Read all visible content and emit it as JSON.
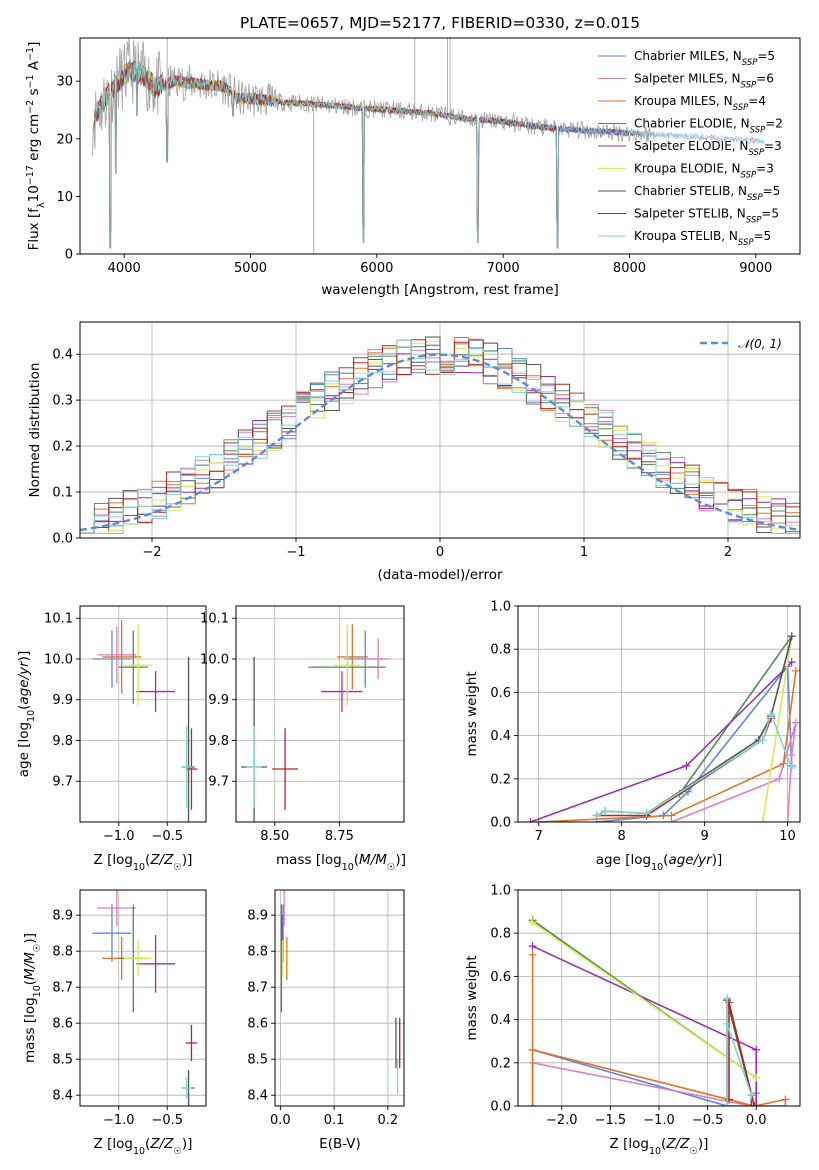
{
  "figure": {
    "title": "PLATE=0657, MJD=52177, FIBERID=0330, z=0.015"
  },
  "colors": {
    "chabrier_miles": "#5b8bd9",
    "salpeter_miles": "#e07fb8",
    "kroupa_miles": "#e0752a",
    "chabrier_elodie": "#4e8b55",
    "salpeter_elodie": "#9a2fb3",
    "kroupa_elodie": "#d6ea56",
    "chabrier_stelib": "#555555",
    "salpeter_stelib": "#b3281e",
    "kroupa_stelib": "#7fd4d8",
    "data": "#a8a8a8",
    "normal": "#5b8bd9"
  },
  "chart_data": [
    {
      "id": "spectrum",
      "type": "line",
      "xlabel": "wavelength [Angstrom, rest frame]",
      "ylabel": "Flux [fλ10⁻¹⁷ erg cm⁻² s⁻¹ A⁻¹]",
      "xlim": [
        3650,
        9350
      ],
      "ylim": [
        0,
        37.5
      ],
      "xticks": [
        4000,
        5000,
        6000,
        7000,
        8000,
        9000
      ],
      "yticks": [
        0,
        10,
        20,
        30
      ],
      "grid": false,
      "legend_position": "top-right",
      "continuum": {
        "wavelength": [
          3750,
          3850,
          3950,
          4050,
          4150,
          4250,
          4400,
          4600,
          4800,
          4900,
          5000,
          5200,
          5500,
          5800,
          6100,
          6400,
          6700,
          7000,
          7300,
          7600,
          8000,
          8400,
          8800,
          9080
        ],
        "flux": [
          23,
          27,
          30,
          32,
          31,
          29,
          30,
          29.5,
          29,
          27,
          27,
          26.5,
          26,
          25.5,
          25,
          24.5,
          23.5,
          23,
          22,
          21.5,
          21,
          20.5,
          20,
          19.5
        ]
      },
      "absorption_features": [
        {
          "wavelength": 3890,
          "depth_flux": 1
        },
        {
          "wavelength": 3934,
          "depth_flux": 14
        },
        {
          "wavelength": 4102,
          "depth_flux": 24
        },
        {
          "wavelength": 4340,
          "depth_flux": 16
        },
        {
          "wavelength": 4861,
          "depth_flux": 24
        },
        {
          "wavelength": 5892,
          "depth_flux": 2
        },
        {
          "wavelength": 6800,
          "depth_flux": 2
        },
        {
          "wavelength": 7430,
          "depth_flux": 1
        }
      ],
      "series": [
        {
          "name": "Chabrier MILES, N_SSP=5",
          "color_key": "chabrier_miles"
        },
        {
          "name": "Salpeter MILES, N_SSP=6",
          "color_key": "salpeter_miles"
        },
        {
          "name": "Kroupa MILES, N_SSP=4",
          "color_key": "kroupa_miles"
        },
        {
          "name": "Chabrier ELODIE, N_SSP=2",
          "color_key": "chabrier_elodie"
        },
        {
          "name": "Salpeter ELODIE, N_SSP=3",
          "color_key": "salpeter_elodie"
        },
        {
          "name": "Kroupa ELODIE, N_SSP=3",
          "color_key": "kroupa_elodie"
        },
        {
          "name": "Chabrier STELIB, N_SSP=5",
          "color_key": "chabrier_stelib"
        },
        {
          "name": "Salpeter STELIB, N_SSP=5",
          "color_key": "salpeter_stelib"
        },
        {
          "name": "Kroupa STELIB, N_SSP=5",
          "color_key": "kroupa_stelib"
        }
      ],
      "legend": [
        {
          "prefix": "Chabrier MILES, N",
          "sub": "SSP",
          "suffix": "=5",
          "color_key": "chabrier_miles"
        },
        {
          "prefix": "Salpeter MILES, N",
          "sub": "SSP",
          "suffix": "=6",
          "color_key": "salpeter_miles"
        },
        {
          "prefix": "Kroupa MILES, N",
          "sub": "SSP",
          "suffix": "=4",
          "color_key": "kroupa_miles"
        },
        {
          "prefix": "Chabrier ELODIE, N",
          "sub": "SSP",
          "suffix": "=2",
          "color_key": "chabrier_elodie"
        },
        {
          "prefix": "Salpeter ELODIE, N",
          "sub": "SSP",
          "suffix": "=3",
          "color_key": "salpeter_elodie"
        },
        {
          "prefix": "Kroupa ELODIE, N",
          "sub": "SSP",
          "suffix": "=3",
          "color_key": "kroupa_elodie"
        },
        {
          "prefix": "Chabrier STELIB, N",
          "sub": "SSP",
          "suffix": "=5",
          "color_key": "chabrier_stelib"
        },
        {
          "prefix": "Salpeter STELIB, N",
          "sub": "SSP",
          "suffix": "=5",
          "color_key": "salpeter_stelib"
        },
        {
          "prefix": "Kroupa STELIB, N",
          "sub": "SSP",
          "suffix": "=5",
          "color_key": "kroupa_stelib"
        }
      ]
    },
    {
      "id": "residuals",
      "type": "line",
      "xlabel": "(data-model)/error",
      "ylabel": "Normed distribution",
      "xlim": [
        -2.5,
        2.5
      ],
      "ylim": [
        0,
        0.47
      ],
      "xticks": [
        -2,
        -1,
        0,
        1,
        2
      ],
      "yticks": [
        0.0,
        0.1,
        0.2,
        0.3,
        0.4
      ],
      "grid": true,
      "legend_position": "top-right",
      "normal_curve": {
        "label": "𝒩(0, 1)",
        "mean": 0,
        "sigma": 1,
        "style": "dashed"
      },
      "histogram": {
        "bin_start": -2.5,
        "bin_width": 0.1,
        "bins": 50,
        "series_count": 9
      }
    },
    {
      "id": "age_vs_Z",
      "type": "scatter",
      "xlabel": "Z [log10(Z/Z☉)]",
      "ylabel": "age  [log10(age/yr)]",
      "xlim": [
        -1.4,
        -0.1
      ],
      "ylim": [
        9.6,
        10.13
      ],
      "xticks": [
        -1.0,
        -0.5
      ],
      "yticks": [
        9.7,
        9.8,
        9.9,
        10.0,
        10.1
      ],
      "grid": true,
      "points": [
        {
          "x": -1.07,
          "y": 10.0,
          "xerr": 0.2,
          "yerr": 0.07,
          "color_key": "chabrier_miles"
        },
        {
          "x": -1.02,
          "y": 10.01,
          "xerr": 0.2,
          "yerr": 0.07,
          "color_key": "salpeter_miles"
        },
        {
          "x": -0.97,
          "y": 10.005,
          "xerr": 0.2,
          "yerr": 0.09,
          "color_key": "kroupa_miles"
        },
        {
          "x": -0.85,
          "y": 9.98,
          "xerr": 0.15,
          "yerr": 0.09,
          "color_key": "chabrier_elodie"
        },
        {
          "x": -0.62,
          "y": 9.92,
          "xerr": 0.2,
          "yerr": 0.05,
          "color_key": "salpeter_elodie"
        },
        {
          "x": -0.8,
          "y": 9.985,
          "xerr": 0.15,
          "yerr": 0.1,
          "color_key": "kroupa_elodie"
        },
        {
          "x": -0.28,
          "y": 9.735,
          "xerr": 0.06,
          "yerr": 0.27,
          "color_key": "chabrier_stelib"
        },
        {
          "x": -0.25,
          "y": 9.73,
          "xerr": 0.06,
          "yerr": 0.1,
          "color_key": "salpeter_stelib"
        },
        {
          "x": -0.3,
          "y": 9.735,
          "xerr": 0.06,
          "yerr": 0.1,
          "color_key": "kroupa_stelib"
        }
      ]
    },
    {
      "id": "age_vs_mass",
      "type": "scatter",
      "xlabel": "mass [log10(M/M☉)]",
      "ylabel": "",
      "xlim": [
        8.35,
        9.0
      ],
      "ylim": [
        9.6,
        10.13
      ],
      "xticks": [
        8.5,
        8.75
      ],
      "yticks": [
        9.7,
        9.8,
        9.9,
        10.0,
        10.1
      ],
      "grid": true,
      "points": [
        {
          "x": 8.85,
          "y": 10.0,
          "xerr": 0.08,
          "yerr": 0.07,
          "color_key": "chabrier_miles"
        },
        {
          "x": 8.9,
          "y": 10.0,
          "xerr": 0.05,
          "yerr": 0.05,
          "color_key": "salpeter_miles"
        },
        {
          "x": 8.8,
          "y": 10.005,
          "xerr": 0.06,
          "yerr": 0.08,
          "color_key": "kroupa_miles"
        },
        {
          "x": 8.78,
          "y": 9.98,
          "xerr": 0.15,
          "yerr": 0.09,
          "color_key": "chabrier_elodie"
        },
        {
          "x": 8.76,
          "y": 9.92,
          "xerr": 0.08,
          "yerr": 0.05,
          "color_key": "salpeter_elodie"
        },
        {
          "x": 8.78,
          "y": 9.985,
          "xerr": 0.05,
          "yerr": 0.1,
          "color_key": "kroupa_elodie"
        },
        {
          "x": 8.42,
          "y": 9.735,
          "xerr": 0.05,
          "yerr": 0.27,
          "color_key": "chabrier_stelib"
        },
        {
          "x": 8.54,
          "y": 9.73,
          "xerr": 0.05,
          "yerr": 0.1,
          "color_key": "salpeter_stelib"
        },
        {
          "x": 8.42,
          "y": 9.735,
          "xerr": 0.03,
          "yerr": 0.1,
          "color_key": "kroupa_stelib"
        }
      ]
    },
    {
      "id": "massweight_vs_age",
      "type": "line",
      "xlabel": "age  [log10(age/yr)]",
      "ylabel": "mass weight",
      "xlim": [
        6.75,
        10.15
      ],
      "ylim": [
        0,
        1.0
      ],
      "xticks": [
        7,
        8,
        9,
        10
      ],
      "yticks": [
        0.0,
        0.2,
        0.4,
        0.6,
        0.8,
        1.0
      ],
      "grid": true,
      "series": [
        {
          "color_key": "chabrier_miles",
          "x": [
            7.7,
            8.5,
            8.8,
            10.0,
            10.05
          ],
          "y": [
            0.0,
            0.03,
            0.14,
            0.72,
            0.26
          ]
        },
        {
          "color_key": "salpeter_miles",
          "x": [
            8.6,
            9.9,
            10.1,
            10.05,
            10.0
          ],
          "y": [
            0.0,
            0.2,
            0.46,
            0.31,
            0.0
          ]
        },
        {
          "color_key": "kroupa_miles",
          "x": [
            7.0,
            8.6,
            9.95,
            10.1
          ],
          "y": [
            0.0,
            0.03,
            0.27,
            0.7
          ]
        },
        {
          "color_key": "chabrier_elodie",
          "x": [
            8.7,
            10.05
          ],
          "y": [
            0.13,
            0.86
          ]
        },
        {
          "color_key": "salpeter_elodie",
          "x": [
            6.9,
            8.78,
            10.05
          ],
          "y": [
            0.0,
            0.26,
            0.74
          ]
        },
        {
          "color_key": "kroupa_elodie",
          "x": [
            9.7,
            10.05
          ],
          "y": [
            0.0,
            0.86
          ]
        },
        {
          "color_key": "chabrier_stelib",
          "x": [
            7.7,
            7.8,
            8.3,
            9.65,
            9.8,
            10.05
          ],
          "y": [
            0.03,
            0.05,
            0.04,
            0.38,
            0.49,
            0.86
          ]
        },
        {
          "color_key": "salpeter_stelib",
          "x": [
            7.7,
            8.3,
            9.7,
            9.8
          ],
          "y": [
            0.03,
            0.03,
            0.38,
            0.48
          ]
        },
        {
          "color_key": "kroupa_stelib",
          "x": [
            7.7,
            7.8,
            8.3,
            9.7,
            9.8,
            10.05
          ],
          "y": [
            0.03,
            0.05,
            0.04,
            0.38,
            0.5,
            0.25
          ]
        }
      ]
    },
    {
      "id": "mass_vs_Z",
      "type": "scatter",
      "xlabel": "Z [log10(Z/Z☉)]",
      "ylabel": "mass [log10(M/M☉)]",
      "xlim": [
        -1.4,
        -0.1
      ],
      "ylim": [
        8.37,
        8.97
      ],
      "xticks": [
        -1.0,
        -0.5
      ],
      "yticks": [
        8.4,
        8.5,
        8.6,
        8.7,
        8.8,
        8.9
      ],
      "grid": true,
      "points": [
        {
          "x": -1.07,
          "y": 8.85,
          "xerr": 0.2,
          "yerr": 0.08,
          "color_key": "chabrier_miles"
        },
        {
          "x": -1.02,
          "y": 8.92,
          "xerr": 0.2,
          "yerr": 0.05,
          "color_key": "salpeter_miles"
        },
        {
          "x": -0.97,
          "y": 8.78,
          "xerr": 0.2,
          "yerr": 0.06,
          "color_key": "kroupa_miles"
        },
        {
          "x": -0.85,
          "y": 8.78,
          "xerr": 0.15,
          "yerr": 0.15,
          "color_key": "chabrier_elodie"
        },
        {
          "x": -0.62,
          "y": 8.765,
          "xerr": 0.2,
          "yerr": 0.08,
          "color_key": "salpeter_elodie"
        },
        {
          "x": -0.8,
          "y": 8.78,
          "xerr": 0.15,
          "yerr": 0.05,
          "color_key": "kroupa_elodie"
        },
        {
          "x": -0.28,
          "y": 8.42,
          "xerr": 0.06,
          "yerr": 0.05,
          "color_key": "chabrier_stelib"
        },
        {
          "x": -0.25,
          "y": 8.545,
          "xerr": 0.06,
          "yerr": 0.05,
          "color_key": "salpeter_stelib"
        },
        {
          "x": -0.3,
          "y": 8.42,
          "xerr": 0.06,
          "yerr": 0.03,
          "color_key": "kroupa_stelib"
        }
      ]
    },
    {
      "id": "mass_vs_ebv",
      "type": "scatter",
      "xlabel": "E(B-V)",
      "ylabel": "",
      "xlim": [
        -0.01,
        0.23
      ],
      "ylim": [
        8.37,
        8.97
      ],
      "xticks": [
        0.0,
        0.1,
        0.2
      ],
      "yticks": [
        8.4,
        8.5,
        8.6,
        8.7,
        8.8,
        8.9
      ],
      "grid": true,
      "points": [
        {
          "x": 0.005,
          "y": 8.85,
          "xerr": 0,
          "yerr": 0.08,
          "color_key": "chabrier_miles"
        },
        {
          "x": 0.007,
          "y": 8.92,
          "xerr": 0,
          "yerr": 0.05,
          "color_key": "salpeter_miles"
        },
        {
          "x": 0.012,
          "y": 8.78,
          "xerr": 0,
          "yerr": 0.06,
          "color_key": "kroupa_miles"
        },
        {
          "x": 0.002,
          "y": 8.78,
          "xerr": 0,
          "yerr": 0.15,
          "color_key": "chabrier_elodie"
        },
        {
          "x": 0.003,
          "y": 8.82,
          "xerr": 0,
          "yerr": 0.08,
          "color_key": "salpeter_elodie"
        },
        {
          "x": 0.004,
          "y": 8.78,
          "xerr": 0,
          "yerr": 0.05,
          "color_key": "kroupa_elodie"
        },
        {
          "x": 0.215,
          "y": 8.545,
          "xerr": 0,
          "yerr": 0.07,
          "color_key": "chabrier_stelib"
        },
        {
          "x": 0.222,
          "y": 8.545,
          "xerr": 0,
          "yerr": 0.07,
          "color_key": "salpeter_stelib"
        },
        {
          "x": 0.218,
          "y": 8.45,
          "xerr": 0,
          "yerr": 0.05,
          "color_key": "kroupa_stelib"
        }
      ]
    },
    {
      "id": "massweight_vs_Z",
      "type": "line",
      "xlabel": "Z [log10(Z/Z☉)]",
      "ylabel": "mass weight",
      "xlim": [
        -2.45,
        0.45
      ],
      "ylim": [
        0,
        1.0
      ],
      "xticks": [
        -2.0,
        -1.5,
        -1.0,
        -0.5,
        0.0
      ],
      "yticks": [
        0.0,
        0.2,
        0.4,
        0.6,
        0.8,
        1.0
      ],
      "grid": true,
      "series": [
        {
          "color_key": "chabrier_miles",
          "x": [
            -2.3,
            -2.3,
            -0.3,
            0.0,
            0.0
          ],
          "y": [
            0.0,
            0.26,
            0.0,
            0.0,
            0.06
          ]
        },
        {
          "color_key": "salpeter_miles",
          "x": [
            -2.3,
            -2.3,
            -0.05,
            0.3,
            0.3
          ],
          "y": [
            0.0,
            0.2,
            0.0,
            0.0,
            0.03
          ]
        },
        {
          "color_key": "kroupa_miles",
          "x": [
            -2.3,
            -2.3,
            -2.3,
            -0.02,
            0.3
          ],
          "y": [
            0.0,
            0.7,
            0.26,
            0.0,
            0.03
          ]
        },
        {
          "color_key": "chabrier_elodie",
          "x": [
            -2.3,
            0.0
          ],
          "y": [
            0.86,
            0.13
          ]
        },
        {
          "color_key": "salpeter_elodie",
          "x": [
            -2.3,
            0.0,
            0.0
          ],
          "y": [
            0.74,
            0.26,
            0.0
          ]
        },
        {
          "color_key": "kroupa_elodie",
          "x": [
            -2.3,
            0.0
          ],
          "y": [
            0.85,
            0.13
          ]
        },
        {
          "color_key": "chabrier_stelib",
          "x": [
            -0.3,
            -0.3,
            -0.05,
            -0.05
          ],
          "y": [
            0.0,
            0.49,
            0.05,
            0.0
          ]
        },
        {
          "color_key": "salpeter_stelib",
          "x": [
            -0.28,
            -0.28,
            -0.02
          ],
          "y": [
            0.03,
            0.48,
            0.0
          ]
        },
        {
          "color_key": "kroupa_stelib",
          "x": [
            -0.3,
            -0.3,
            -0.3,
            -0.05
          ],
          "y": [
            0.0,
            0.5,
            0.38,
            0.05
          ]
        }
      ]
    }
  ]
}
